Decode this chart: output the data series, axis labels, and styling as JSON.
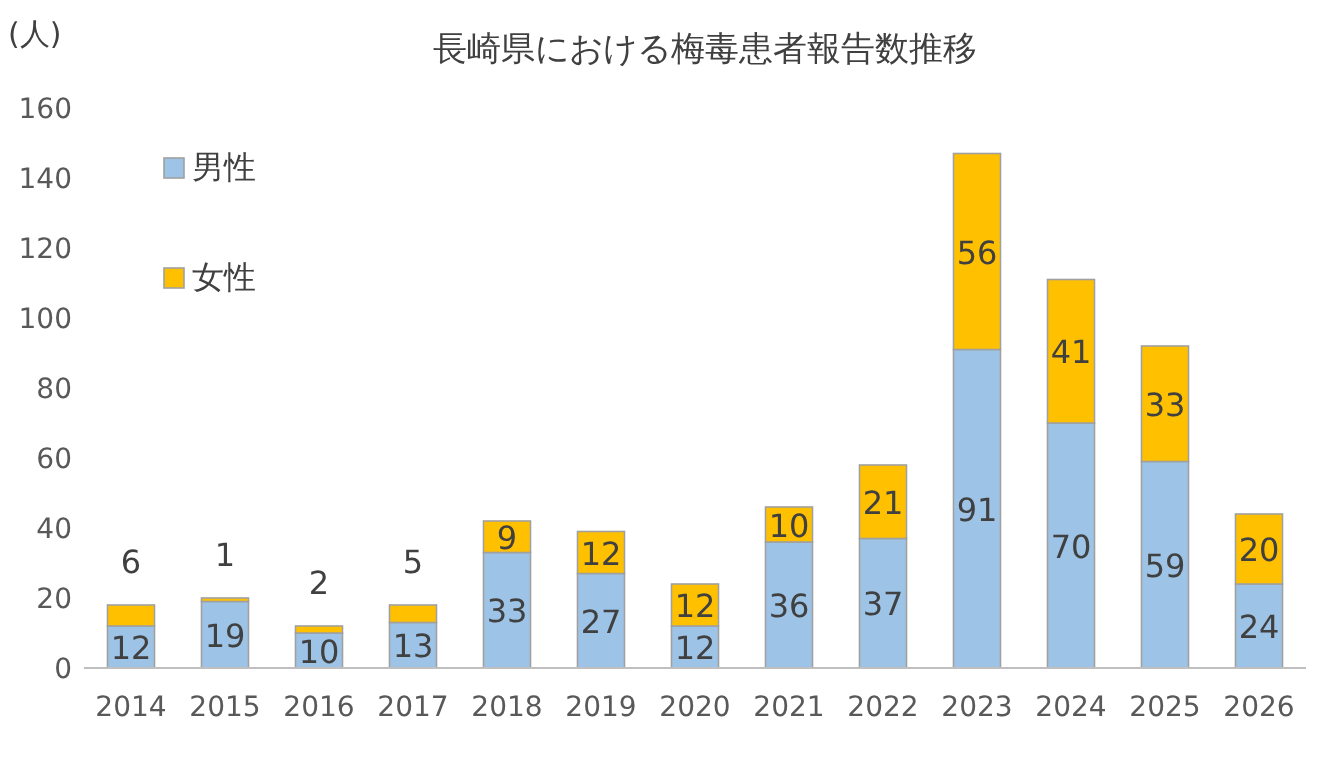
{
  "chart_data": {
    "type": "bar",
    "title": "長崎県における梅毒患者報告数推移",
    "ylabel": "(人)",
    "categories": [
      "2014",
      "2015",
      "2016",
      "2017",
      "2018",
      "2019",
      "2020",
      "2021",
      "2022",
      "2023",
      "2024",
      "2025",
      "2026"
    ],
    "series": [
      {
        "name": "男性",
        "color": "#9dc3e6",
        "values": [
          12,
          19,
          10,
          13,
          33,
          27,
          12,
          36,
          37,
          91,
          70,
          59,
          24
        ]
      },
      {
        "name": "女性",
        "color": "#ffc000",
        "values": [
          6,
          1,
          2,
          5,
          9,
          12,
          12,
          10,
          21,
          56,
          41,
          33,
          20
        ]
      }
    ],
    "stacked": true,
    "ylim": [
      0,
      160
    ],
    "yticks": [
      0,
      20,
      40,
      60,
      80,
      100,
      120,
      140,
      160
    ],
    "grid": false,
    "legend": "top left",
    "data_labels": true
  }
}
